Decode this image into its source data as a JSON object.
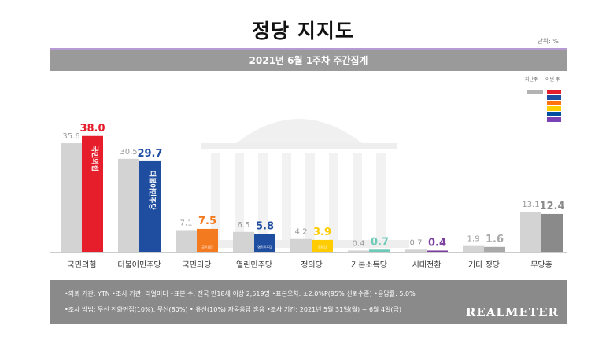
{
  "title": "정당 지지도",
  "unit": "단위: %",
  "subtitle": "2021년 6월 1주차 주간집계",
  "legend": {
    "prev_label": "지난주",
    "curr_label": "이번 주",
    "swatch_colors": [
      "#e61e2b",
      "#1f4ea1",
      "#ff7210",
      "#ffce00",
      "#004ea2",
      "#7b42b7"
    ]
  },
  "chart_data": {
    "type": "bar",
    "categories": [
      "국민의힘",
      "더불어민주당",
      "국민의당",
      "열린민주당",
      "정의당",
      "기본소득당",
      "시대전환",
      "기타 정당",
      "무당층"
    ],
    "series": [
      {
        "name": "지난주",
        "values": [
          35.6,
          30.5,
          7.1,
          6.5,
          4.2,
          0.4,
          0.7,
          1.9,
          13.1
        ]
      },
      {
        "name": "이번 주",
        "values": [
          38.0,
          29.7,
          7.5,
          5.8,
          3.9,
          0.7,
          0.4,
          1.6,
          12.4
        ]
      }
    ],
    "current_colors": [
      "#e61e2b",
      "#1f4ea1",
      "#f47a20",
      "#1f4ea1",
      "#ffcc00",
      "#6fc9b7",
      "#7b3fa0",
      "#a8a8a8",
      "#8a8a8a"
    ],
    "bar_logos": [
      "국민의힘",
      "더불어민주당",
      "국민의당",
      "열린민주당",
      "정의당",
      "",
      "",
      "",
      ""
    ],
    "ylim": [
      0,
      40
    ],
    "grid": false
  },
  "footer": {
    "line1": "•의뢰 기관: YTN •조사 기관: 리얼미터 •표본 수: 전국 만18세 이상 2,519명 •표본오차: ±2.0%P(95% 신뢰수준) •응답률: 5.0%",
    "line2": "•조사 방법: 무선 전화면접(10%), 무선(80%) • 유선(10%) 자동응답 혼용  •조사 기간: 2021년 5월 31일(월) ~ 6월 4일(금)",
    "logo": "REALMETER"
  }
}
